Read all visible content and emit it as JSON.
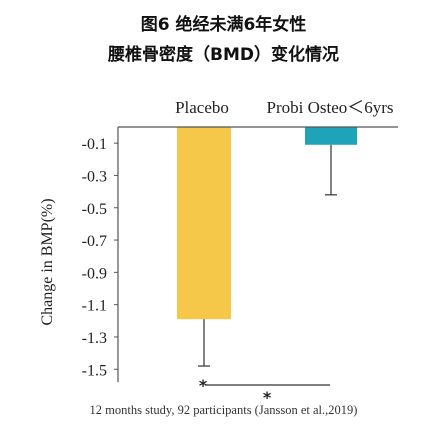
{
  "title_line1": "图6 绝经未满6年女性",
  "title_line2": "腰椎骨密度（BMD）变化情况",
  "caption": "12 months study, 92 participants (Jansson et al.,2019)",
  "colors": {
    "placebo": "#F5C84A",
    "probi": "#1FA3B8",
    "axis": "#555555",
    "text": "#222222"
  },
  "chart_data": {
    "type": "bar",
    "categories": [
      "Placebo",
      "Probi Osteo＜6yrs"
    ],
    "values": [
      -1.19,
      -0.11
    ],
    "error_low": [
      -1.48,
      -0.42
    ],
    "ylabel": "Change in BMP(%)",
    "yticks": [
      "-0.1",
      "-0.3",
      "-0.5",
      "-0.7",
      "-0.9",
      "-1.1",
      "-1.3",
      "-1.5"
    ],
    "ylim": [
      -1.6,
      0
    ],
    "significance": {
      "placebo_marker": "*",
      "between_groups_marker": "*"
    }
  }
}
